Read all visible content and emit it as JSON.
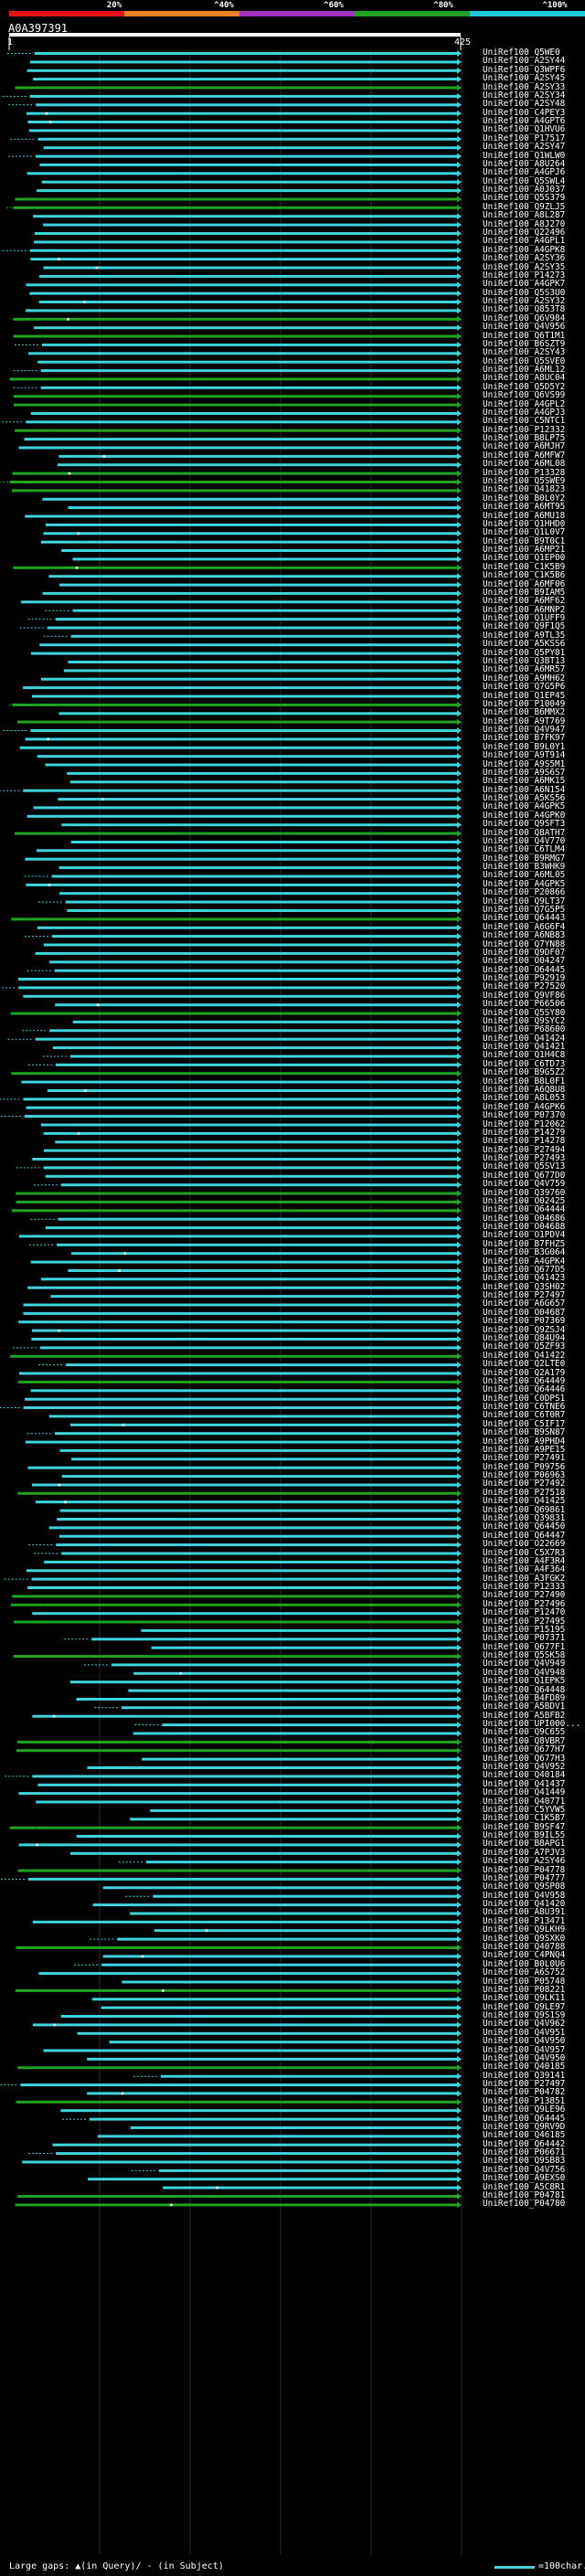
{
  "query": {
    "id": "A0A397391",
    "start": "1",
    "end": "425"
  },
  "scale": {
    "labels": [
      "20%",
      "^40%",
      "^60%",
      "^80%",
      "^100%"
    ],
    "colors": [
      "#e8121a",
      "#f08020",
      "#a030c0",
      "#20a020",
      "#20c8d8"
    ]
  },
  "colors": {
    "background": "#000000",
    "high_identity": "#3fd3dc",
    "mid_identity": "#1fa51f",
    "gap_marker": "#ffffff"
  },
  "hits": [
    "UniRef100_Q5WE0",
    "UniRef100_A2SY44",
    "UniRef100_Q3WPF6",
    "UniRef100_A2SY45",
    "UniRef100_A2SY33",
    "UniRef100_A2SY34",
    "UniRef100_A2SY48",
    "UniRef100_C4PEY3",
    "UniRef100_A4GPT6",
    "UniRef100_Q1HVU6",
    "UniRef100_P17517",
    "UniRef100_A2SY47",
    "UniRef100_Q1WLW0",
    "UniRef100_A8U264",
    "UniRef100_A4GPJ6",
    "UniRef100_Q5SWL4",
    "UniRef100_A0J037",
    "UniRef100_Q5S379",
    "UniRef100_Q9ZLJ5",
    "UniRef100_A8L287",
    "UniRef100_A8J270",
    "UniRef100_Q22496",
    "UniRef100_A4GPL1",
    "UniRef100_A4GPK8",
    "UniRef100_A2SY36",
    "UniRef100_A2SY35",
    "UniRef100_P14273",
    "UniRef100_A4GPK7",
    "UniRef100_Q5S3U0",
    "UniRef100_A2SY32",
    "UniRef100_Q853T8",
    "UniRef100_Q6V984",
    "UniRef100_Q4V956",
    "UniRef100_Q6T1M1",
    "UniRef100_B6SZT9",
    "UniRef100_A2SY43",
    "UniRef100_Q5SVE0",
    "UniRef100_A6ML12",
    "UniRef100_A8UC04",
    "UniRef100_Q5D5Y2",
    "UniRef100_Q6VS99",
    "UniRef100_A4GPL2",
    "UniRef100_A4GPJ3",
    "UniRef100_C5NTC1",
    "UniRef100_P12332",
    "UniRef100_B8LP75",
    "UniRef100_A6MJH7",
    "UniRef100_A6MFW7",
    "UniRef100_A6ML08",
    "UniRef100_P13328",
    "UniRef100_Q5SWE9",
    "UniRef100_Q41823",
    "UniRef100_B0L0Y2",
    "UniRef100_A6MT95",
    "UniRef100_A6MU18",
    "UniRef100_Q1HHD0",
    "UniRef100_Q1L0V7",
    "UniRef100_B9T0C1",
    "UniRef100_A6MP21",
    "UniRef100_Q1EP00",
    "UniRef100_C1K5B9",
    "UniRef100_C1K5B6",
    "UniRef100_A6MF06",
    "UniRef100_B9IAM5",
    "UniRef100_A6MF62",
    "UniRef100_A6MNP2",
    "UniRef100_Q1UFF9",
    "UniRef100_Q9F1Q5",
    "UniRef100_A9TL35",
    "UniRef100_A5KSS6",
    "UniRef100_Q5PY01",
    "UniRef100_Q3BT13",
    "UniRef100_A6MR57",
    "UniRef100_A9MH62",
    "UniRef100_Q7G5P6",
    "UniRef100_Q1EP45",
    "UniRef100_P10049",
    "UniRef100_B6MMX2",
    "UniRef100_A9T769",
    "UniRef100_Q4V947",
    "UniRef100_B7FK97",
    "UniRef100_B9L0Y1",
    "UniRef100_A9T914",
    "UniRef100_A9S5M1",
    "UniRef100_A9S6S7",
    "UniRef100_A6MK15",
    "UniRef100_A6N154",
    "UniRef100_A5KS56",
    "UniRef100_A4GPK5",
    "UniRef100_A4GPK0",
    "UniRef100_Q9SFT3",
    "UniRef100_Q8ATH7",
    "UniRef100_Q4V770",
    "UniRef100_C6TLM4",
    "UniRef100_B9RMG7",
    "UniRef100_B3WHK9",
    "UniRef100_A6ML05",
    "UniRef100_A4GPK5",
    "UniRef100_P20866",
    "UniRef100_Q9LT37",
    "UniRef100_Q7G5P5",
    "UniRef100_Q64443",
    "UniRef100_A6G6F4",
    "UniRef100_A6NB83",
    "UniRef100_Q7YN88",
    "UniRef100_Q9DF07",
    "UniRef100_O04247",
    "UniRef100_O64445",
    "UniRef100_P92919",
    "UniRef100_P27520",
    "UniRef100_Q9VF86",
    "UniRef100_P66506",
    "UniRef100_Q5SY80",
    "UniRef100_Q9SYC2",
    "UniRef100_P68600",
    "UniRef100_Q41424",
    "UniRef100_Q41421",
    "UniRef100_Q1H4C8",
    "UniRef100_C6TD73",
    "UniRef100_B9G5Z2",
    "UniRef100_B8L0F1",
    "UniRef100_A6Q8U8",
    "UniRef100_A8L053",
    "UniRef100_A4GPK6",
    "UniRef100_P07370",
    "UniRef100_P12062",
    "UniRef100_P14279",
    "UniRef100_P14278",
    "UniRef100_P27494",
    "UniRef100_P27493",
    "UniRef100_Q5SV13",
    "UniRef100_Q677D0",
    "UniRef100_Q4V759",
    "UniRef100_Q39760",
    "UniRef100_O02425",
    "UniRef100_Q64444",
    "UniRef100_O04686",
    "UniRef100_O04688",
    "UniRef100_O1PDV4",
    "UniRef100_B7FHZ5",
    "UniRef100_B3G064",
    "UniRef100_A4GPK4",
    "UniRef100_Q677D5",
    "UniRef100_Q41423",
    "UniRef100_Q3SH02",
    "UniRef100_P27497",
    "UniRef100_A6G657",
    "UniRef100_O04687",
    "UniRef100_P07369",
    "UniRef100_Q9ZSJ4",
    "UniRef100_Q84U94",
    "UniRef100_Q5ZF93",
    "UniRef100_Q41422",
    "UniRef100_Q2LTE0",
    "UniRef100_Q2A179",
    "UniRef100_Q64449",
    "UniRef100_Q64446",
    "UniRef100_C0DPS1",
    "UniRef100_C6TNE6",
    "UniRef100_C6T0R7",
    "UniRef100_C5IF17",
    "UniRef100_B9SN87",
    "UniRef100_A9PHD4",
    "UniRef100_A9PE15",
    "UniRef100_P27491",
    "UniRef100_P09756",
    "UniRef100_P06963",
    "UniRef100_P27492",
    "UniRef100_P27518",
    "UniRef100_Q41425",
    "UniRef100_Q69861",
    "UniRef100_Q39831",
    "UniRef100_Q64450",
    "UniRef100_Q64447",
    "UniRef100_O22669",
    "UniRef100_C5X7R3",
    "UniRef100_A4F3R4",
    "UniRef100_A4F364",
    "UniRef100_A3FGK2",
    "UniRef100_P12333",
    "UniRef100_P27490",
    "UniRef100_P27496",
    "UniRef100_P12470",
    "UniRef100_P27495",
    "UniRef100_P15195",
    "UniRef100_P07371",
    "UniRef100_Q677F1",
    "UniRef100_Q5SK58",
    "UniRef100_Q4V949",
    "UniRef100_Q4V948",
    "UniRef100_Q1EPK5",
    "UniRef100_Q64448",
    "UniRef100_B4FD89",
    "UniRef100_A5BDV1",
    "UniRef100_A5BFB2",
    "UniRef100_UPI000...",
    "UniRef100_Q9C655",
    "UniRef100_Q8VBR7",
    "UniRef100_Q677H7",
    "UniRef100_Q677H3",
    "UniRef100_Q4V952",
    "UniRef100_Q40184",
    "UniRef100_Q41437",
    "UniRef100_Q41449",
    "UniRef100_Q40771",
    "UniRef100_C5YVW5",
    "UniRef100_C1K5B7",
    "UniRef100_B9SF47",
    "UniRef100_B9IL55",
    "UniRef100_B8APG1",
    "UniRef100_A7PJV3",
    "UniRef100_A2SY46",
    "UniRef100_P04778",
    "UniRef100_P04777",
    "UniRef100_Q9SP08",
    "UniRef100_Q4V958",
    "UniRef100_Q41420",
    "UniRef100_A8U391",
    "UniRef100_P13471",
    "UniRef100_Q9LKH9",
    "UniRef100_Q9SXK0",
    "UniRef100_Q40788",
    "UniRef100_C4PNQ4",
    "UniRef100_B0L0U6",
    "UniRef100_A6S752",
    "UniRef100_P05748",
    "UniRef100_P08221",
    "UniRef100_Q9LK11",
    "UniRef100_Q9LE97",
    "UniRef100_Q9S1S9",
    "UniRef100_Q4V962",
    "UniRef100_Q4V951",
    "UniRef100_Q4V950",
    "UniRef100_Q4V957",
    "UniRef100_Q4V950",
    "UniRef100_Q40185",
    "UniRef100_Q39141",
    "UniRef100_P27497",
    "UniRef100_P04782",
    "UniRef100_P13851",
    "UniRef100_Q9LE96",
    "UniRef100_Q64445",
    "UniRef100_Q9RV9D",
    "UniRef100_Q46185",
    "UniRef100_Q64442",
    "UniRef100_P06671",
    "UniRef100_Q9SB83",
    "UniRef100_Q4V756",
    "UniRef100_A9EXS0",
    "UniRef100_A5C8R1",
    "UniRef100_P04781",
    "UniRef100_P04780"
  ],
  "legend": {
    "large_gaps": "Large gaps: ▲(in Query)/ - (in Subject)",
    "scale_unit": "=100char."
  }
}
